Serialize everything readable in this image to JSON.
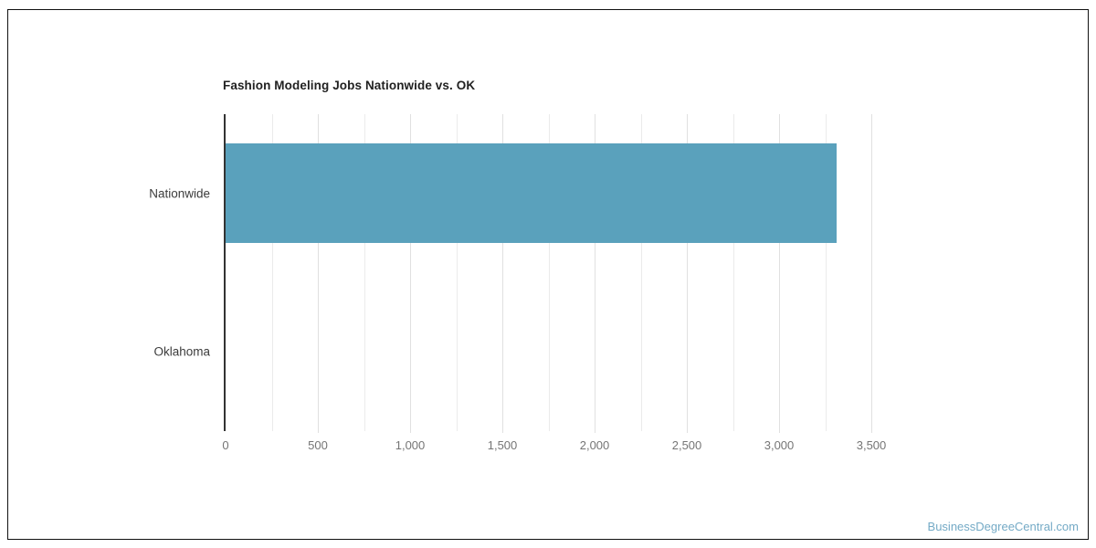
{
  "chart_data": {
    "type": "bar",
    "orientation": "horizontal",
    "title": "Fashion Modeling Jobs Nationwide vs. OK",
    "categories": [
      "Nationwide",
      "Oklahoma"
    ],
    "values": [
      3310,
      0
    ],
    "xlabel": "",
    "ylabel": "",
    "xlim": [
      0,
      3500
    ],
    "x_tick_values": [
      0,
      500,
      1000,
      1500,
      2000,
      2500,
      3000,
      3500
    ],
    "x_tick_labels": [
      "0",
      "500",
      "1,000",
      "1,500",
      "2,000",
      "2,500",
      "3,000",
      "3,500"
    ],
    "minor_grid_step": 250,
    "grid": "vertical",
    "legend": "none",
    "colors": {
      "bar": "#5AA1BC",
      "axis_line": "#333333",
      "gridline_major": "#e0e0e0",
      "gridline_minor": "#ebebeb",
      "title_text": "#212121",
      "category_label": "#3c3c3c",
      "tick_label": "#757575"
    }
  },
  "watermark": {
    "text": "BusinessDegreeCentral.com",
    "color": "#74aac6"
  }
}
